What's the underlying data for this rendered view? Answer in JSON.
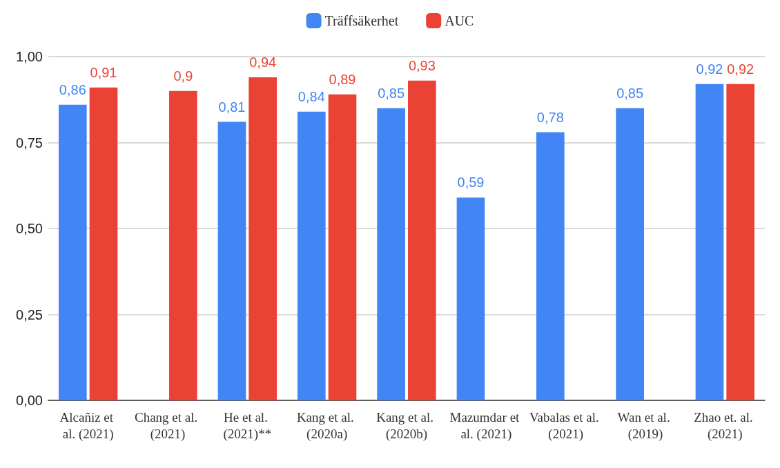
{
  "chart_data": {
    "type": "bar",
    "categories": [
      "Alcañiz et al. (2021)",
      "Chang et al. (2021)",
      "He et al. (2021)**",
      "Kang et al. (2020a)",
      "Kang et al. (2020b)",
      "Mazumdar et al. (2021)",
      "Vabalas et al. (2021)",
      "Wan et al. (2019)",
      "Zhao et. al. (2021)"
    ],
    "series": [
      {
        "name": "Träffsäkerhet",
        "color": "#4285f4",
        "values": [
          0.86,
          null,
          0.81,
          0.84,
          0.85,
          0.59,
          0.78,
          0.85,
          0.92
        ],
        "value_labels": [
          "0,86",
          null,
          "0,81",
          "0,84",
          "0,85",
          "0,59",
          "0,78",
          "0,85",
          "0,92"
        ]
      },
      {
        "name": "AUC",
        "color": "#ea4335",
        "values": [
          0.91,
          0.9,
          0.94,
          0.89,
          0.93,
          null,
          null,
          null,
          0.92
        ],
        "value_labels": [
          "0,91",
          "0,9",
          "0,94",
          "0,89",
          "0,93",
          null,
          null,
          null,
          "0,92"
        ]
      }
    ],
    "ylim": [
      0,
      1
    ],
    "yticks": [
      {
        "value": 0,
        "label": "0,00"
      },
      {
        "value": 0.25,
        "label": "0,25"
      },
      {
        "value": 0.5,
        "label": "0,50"
      },
      {
        "value": 0.75,
        "label": "0,75"
      },
      {
        "value": 1,
        "label": "1,00"
      }
    ],
    "grid": "y",
    "legend": "top"
  }
}
